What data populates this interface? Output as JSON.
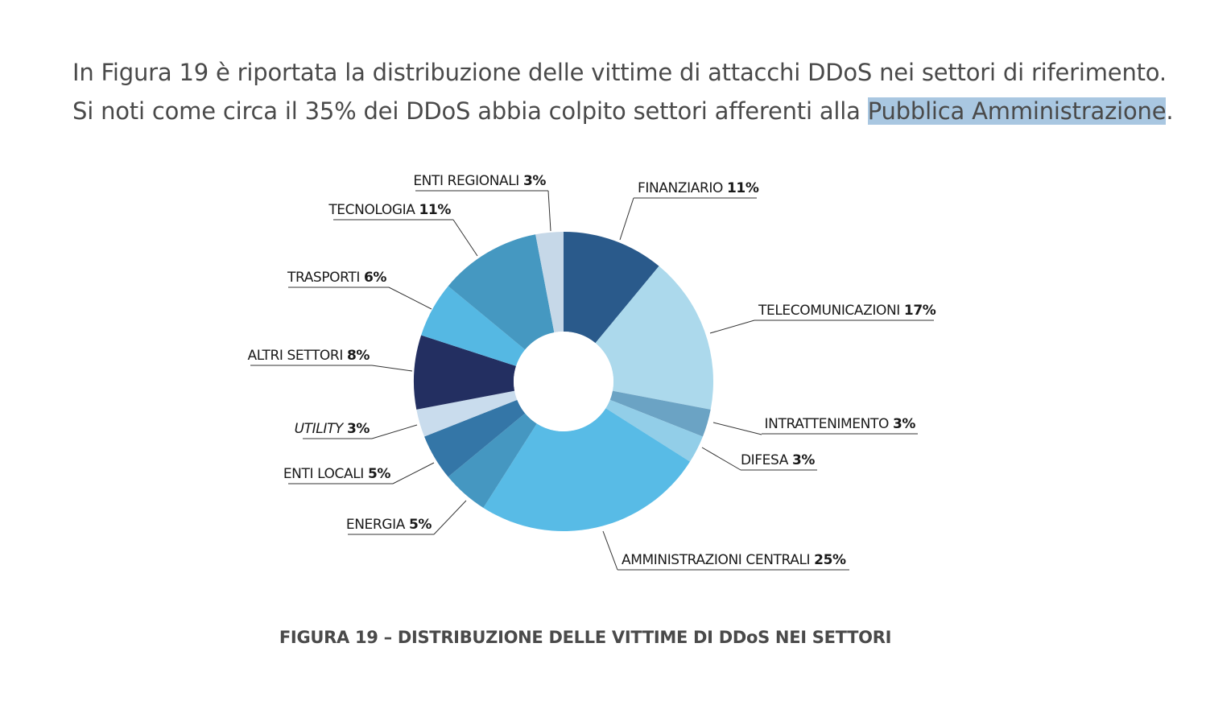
{
  "intro": {
    "line1": "In Figura 19 è riportata la distribuzione delle vittime di attacchi DDoS nei settori di riferimento.",
    "line2_before": "Si noti come circa il 35% dei DDoS abbia colpito settori afferenti alla ",
    "line2_highlight": "Pubblica Amministrazione",
    "line2_after": "."
  },
  "caption": "FIGURA 19 – DISTRIBUZIONE DELLE VITTIME DI DDoS NEI SETTORI",
  "chart_data": {
    "type": "pie",
    "donut": true,
    "unit": "%",
    "categories": [
      "FINANZIARIO",
      "TELECOMUNICAZIONI",
      "INTRATTENIMENTO",
      "DIFESA",
      "AMMINISTRAZIONI CENTRALI",
      "ENERGIA",
      "ENTI LOCALI",
      "UTILITY",
      "ALTRI SETTORI",
      "TRASPORTI",
      "TECNOLOGIA",
      "ENTI REGIONALI"
    ],
    "values": [
      11,
      17,
      3,
      3,
      25,
      5,
      5,
      3,
      8,
      6,
      11,
      3
    ],
    "labels": [
      "11%",
      "17%",
      "3%",
      "3%",
      "25%",
      "5%",
      "5%",
      "3%",
      "8%",
      "6%",
      "11%",
      "3%"
    ],
    "colors": [
      "#2a5a8b",
      "#acd9ec",
      "#6ba3c4",
      "#92cee8",
      "#58bbe6",
      "#4597c1",
      "#3476a7",
      "#c9dced",
      "#232f61",
      "#55b8e3",
      "#4598c1",
      "#c6d8e8"
    ],
    "italic": [
      false,
      false,
      false,
      false,
      false,
      false,
      false,
      true,
      false,
      false,
      false,
      false
    ]
  }
}
